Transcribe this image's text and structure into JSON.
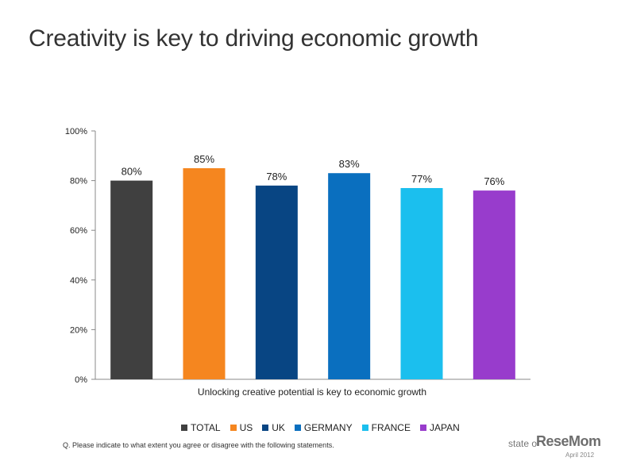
{
  "page": {
    "title": "Creativity is key to driving economic growth"
  },
  "chart_data": {
    "type": "bar",
    "title": "Creativity is key to driving economic growth",
    "xlabel": "Unlocking creative potential is key to economic growth",
    "ylabel": "",
    "ylim": [
      0,
      100
    ],
    "yticks": [
      "0%",
      "20%",
      "40%",
      "60%",
      "80%",
      "100%"
    ],
    "ytick_values": [
      0,
      20,
      40,
      60,
      80,
      100
    ],
    "categories": [
      "TOTAL",
      "US",
      "UK",
      "GERMANY",
      "FRANCE",
      "JAPAN"
    ],
    "values": [
      80,
      85,
      78,
      83,
      77,
      76
    ],
    "value_labels": [
      "80%",
      "85%",
      "78%",
      "83%",
      "77%",
      "76%"
    ],
    "colors": [
      "#404040",
      "#f5861f",
      "#084583",
      "#0a6fbf",
      "#1bbfee",
      "#983ccc"
    ],
    "legend_position": "bottom",
    "grid": false
  },
  "footnote": "Q. Please indicate to what extent you agree or disagree with the following statements.",
  "source": "state o",
  "date": "April 2012",
  "watermark": "ReseMom"
}
